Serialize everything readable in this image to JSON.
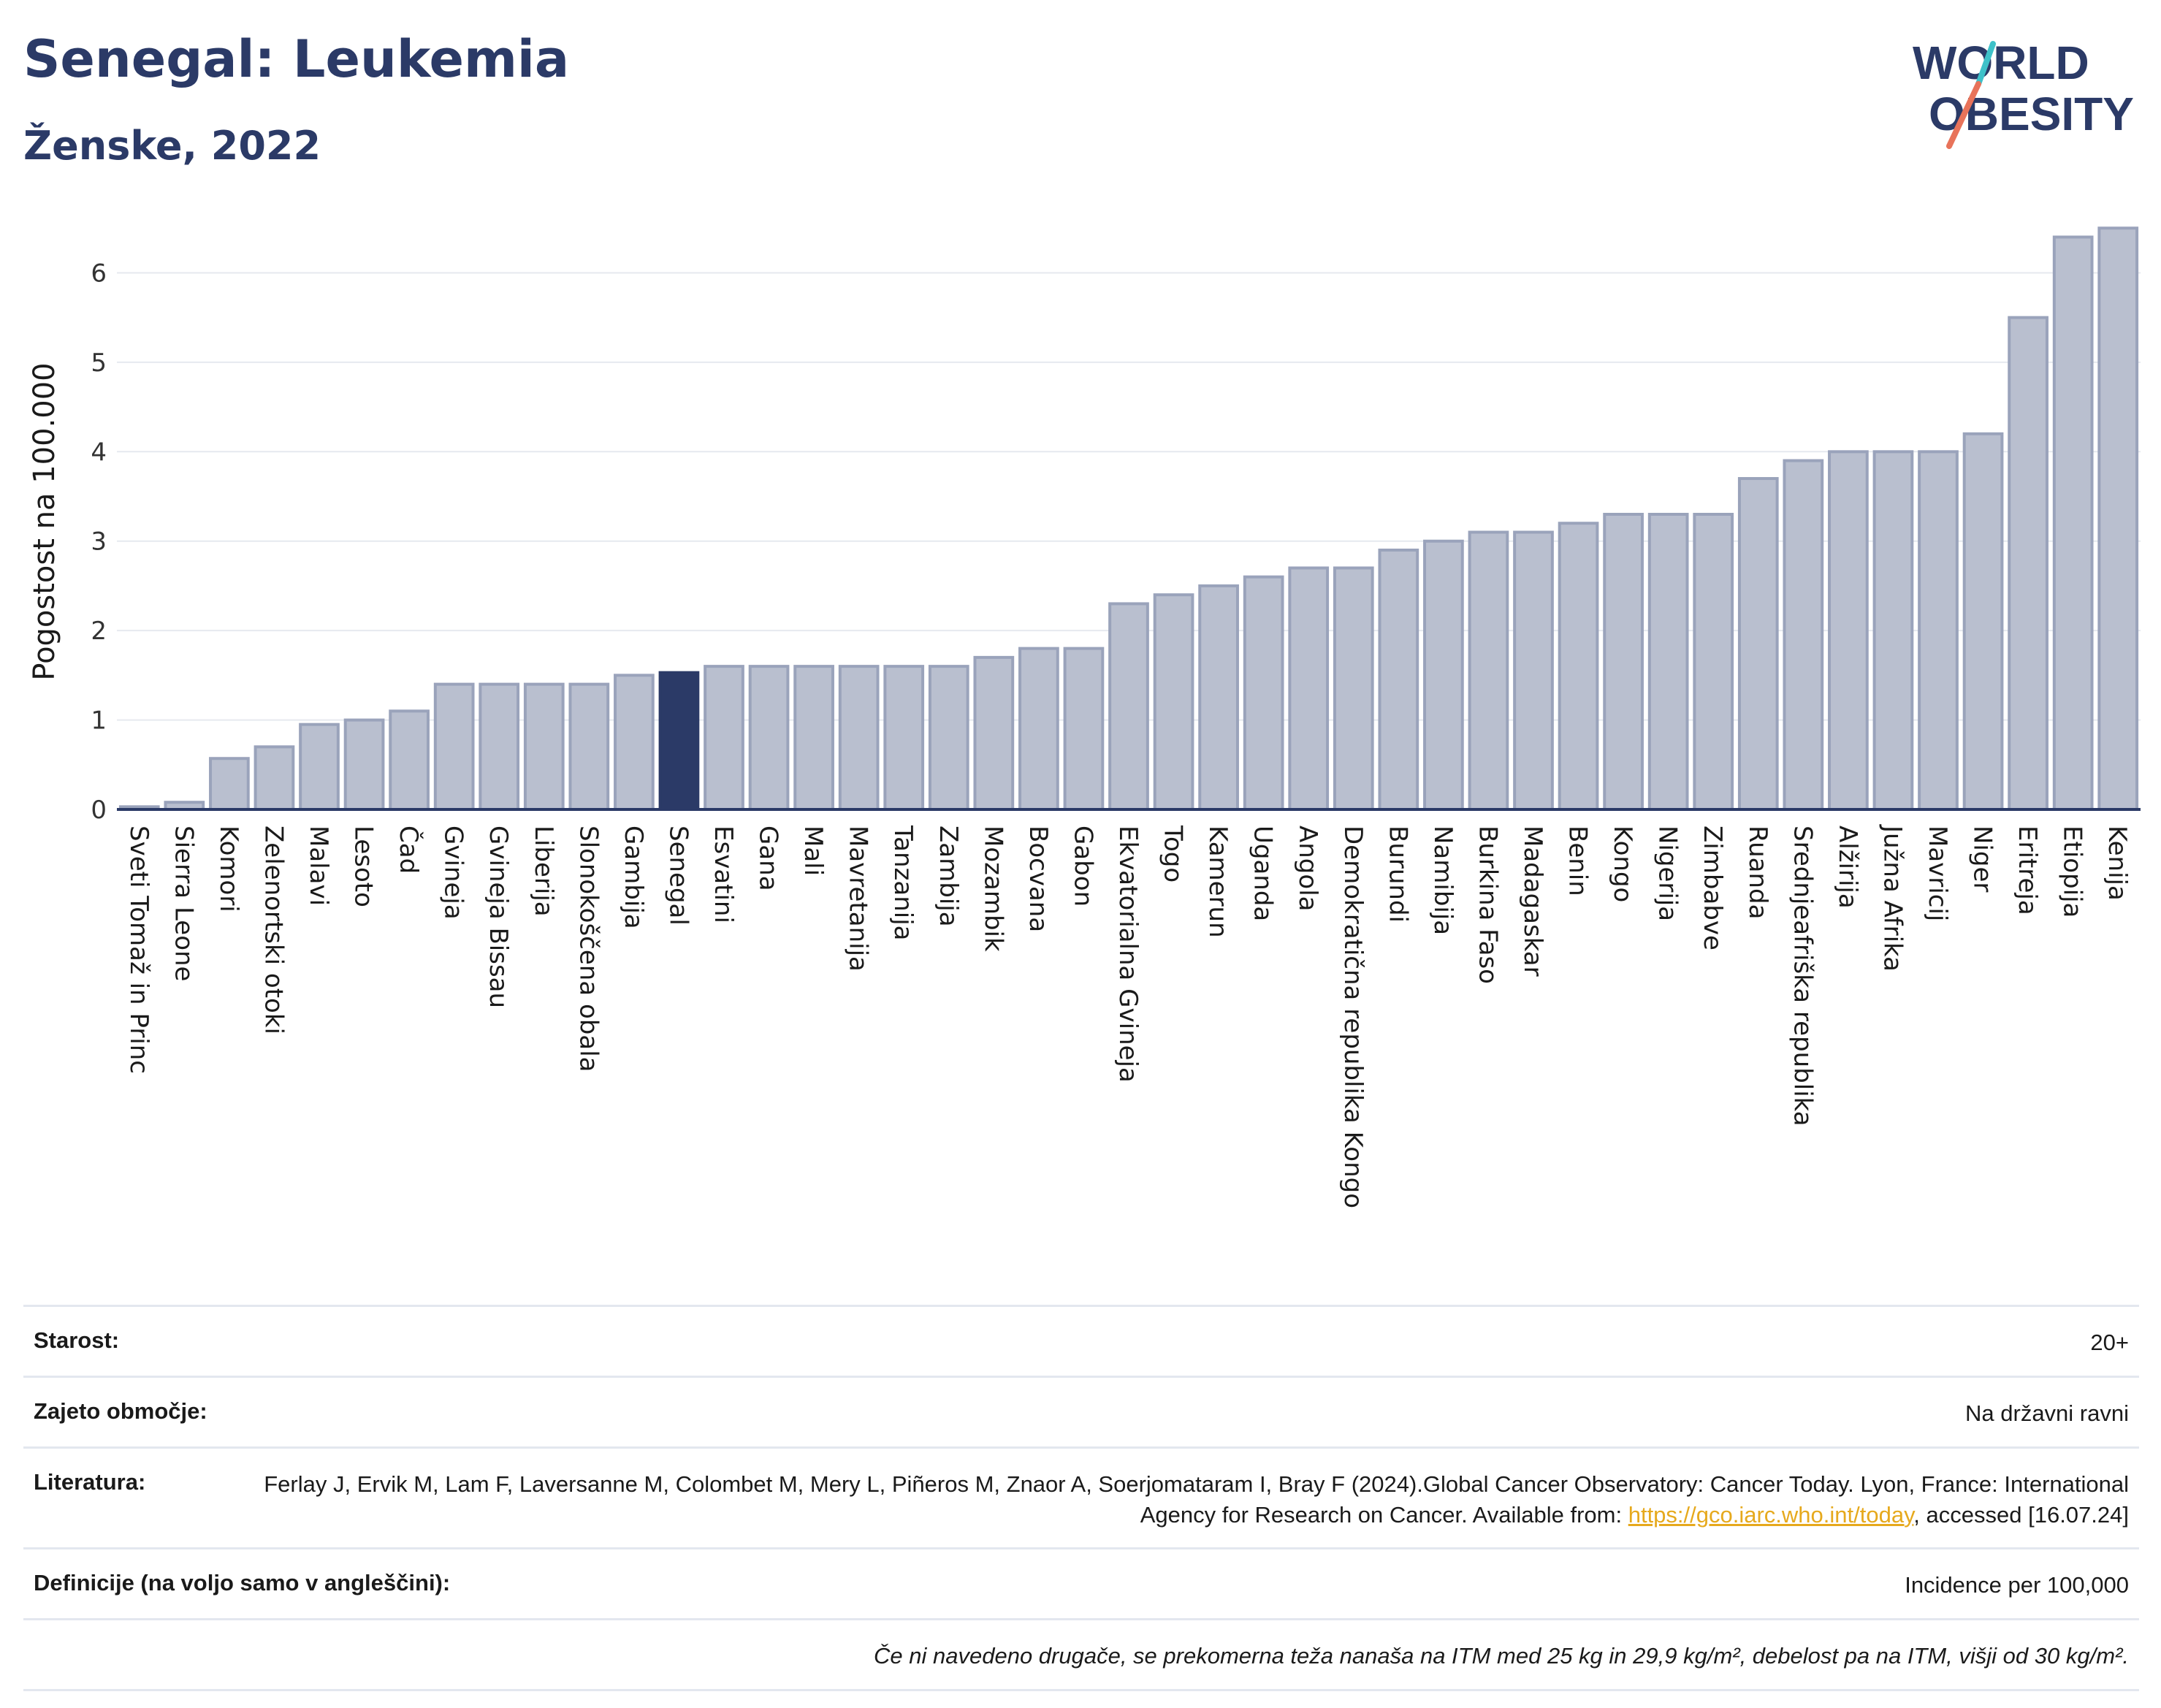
{
  "header": {
    "title": "Senegal: Leukemia",
    "subtitle": "Ženske, 2022"
  },
  "logo": {
    "line1": "WORLD",
    "line2": "OBESITY",
    "colors": {
      "text": "#2b3a67",
      "slash_teal": "#3ec1c9",
      "slash_coral": "#e8735a"
    }
  },
  "chart_data": {
    "type": "bar",
    "ylabel": "Pogostost na 100.000",
    "ylim": [
      0,
      6.6
    ],
    "yticks": [
      0,
      1,
      2,
      3,
      4,
      5,
      6
    ],
    "grid": true,
    "highlight": "Senegal",
    "colors": {
      "bar": "#b9bfcf",
      "bar_edge": "#9aa3bb",
      "highlight": "#2b3a67",
      "axis": "#2b3a67",
      "grid": "#e6e9ef"
    },
    "categories": [
      "Sveti Tomaž in Princ",
      "Sierra Leone",
      "Komori",
      "Zelenortski otoki",
      "Malavi",
      "Lesoto",
      "Čad",
      "Gvineja",
      "Gvineja Bissau",
      "Liberija",
      "Slonokoščena obala",
      "Gambija",
      "Senegal",
      "Esvatini",
      "Gana",
      "Mali",
      "Mavretanija",
      "Tanzanija",
      "Zambija",
      "Mozambik",
      "Bocvana",
      "Gabon",
      "Ekvatorialna Gvineja",
      "Togo",
      "Kamerun",
      "Uganda",
      "Angola",
      "Demokratična republika Kongo",
      "Burundi",
      "Namibija",
      "Burkina Faso",
      "Madagaskar",
      "Benin",
      "Kongo",
      "Nigerija",
      "Zimbabve",
      "Ruanda",
      "Srednjeafriška republika",
      "Alžirija",
      "Južna Afrika",
      "Mavricij",
      "Niger",
      "Eritreja",
      "Etiopija",
      "Kenija"
    ],
    "values": [
      0.03,
      0.08,
      0.57,
      0.7,
      0.95,
      1.0,
      1.1,
      1.4,
      1.4,
      1.4,
      1.4,
      1.5,
      1.53,
      1.6,
      1.6,
      1.6,
      1.6,
      1.6,
      1.6,
      1.7,
      1.8,
      1.8,
      2.3,
      2.4,
      2.5,
      2.6,
      2.7,
      2.7,
      2.9,
      3.0,
      3.1,
      3.1,
      3.2,
      3.3,
      3.3,
      3.3,
      3.7,
      3.9,
      4.0,
      4.0,
      4.0,
      4.2,
      5.5,
      6.4,
      6.5
    ]
  },
  "info": {
    "rows": [
      {
        "label": "Starost:",
        "value": "20+"
      },
      {
        "label": "Zajeto območje:",
        "value": "Na državni ravni"
      },
      {
        "label": "Literatura:",
        "value_pre": "Ferlay J, Ervik M, Lam F, Laversanne M, Colombet M, Mery L, Piñeros M, Znaor A, Soerjomataram I, Bray F (2024).Global Cancer Observatory: Cancer Today. Lyon, France: International Agency for Research on Cancer. Available from: ",
        "link": "https://gco.iarc.who.int/today",
        "value_post": ", accessed [16.07.24]"
      },
      {
        "label": "Definicije (na voljo samo v angleščini):",
        "value": "Incidence per 100,000"
      }
    ],
    "note": "Če ni navedeno drugače, se prekomerna teža nanaša na ITM med 25 kg in 29,9 kg/m², debelost pa na ITM, višji od 30 kg/m²."
  }
}
